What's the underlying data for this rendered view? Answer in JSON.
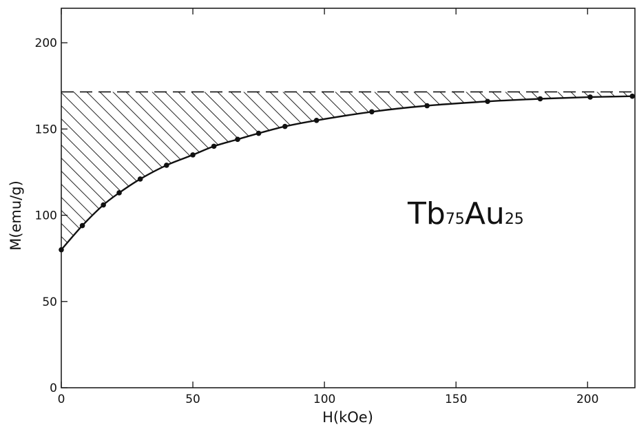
{
  "chart_data": {
    "type": "scatter",
    "xlabel": "H(kOe)",
    "ylabel": "M(emu/g)",
    "xlim": [
      0,
      218
    ],
    "ylim": [
      0,
      220
    ],
    "xticks": [
      "0",
      "50",
      "100",
      "150",
      "200"
    ],
    "yticks": [
      "0",
      "50",
      "100",
      "150",
      "200"
    ],
    "annotation": {
      "main1": "Tb",
      "sub1": "75",
      "main2": "Au",
      "sub2": "25"
    },
    "saturation_level": 171.5,
    "series": [
      {
        "x": [
          0,
          8,
          16,
          22,
          30,
          40,
          50,
          58,
          67,
          75,
          85,
          97,
          118,
          139,
          162,
          182,
          201,
          217
        ],
        "y": [
          80,
          94,
          106,
          113,
          121,
          129,
          135,
          140,
          144,
          147.5,
          151.5,
          155,
          160,
          163.5,
          166,
          167.5,
          168.5,
          169
        ]
      }
    ],
    "grid": false,
    "legend": "none"
  }
}
